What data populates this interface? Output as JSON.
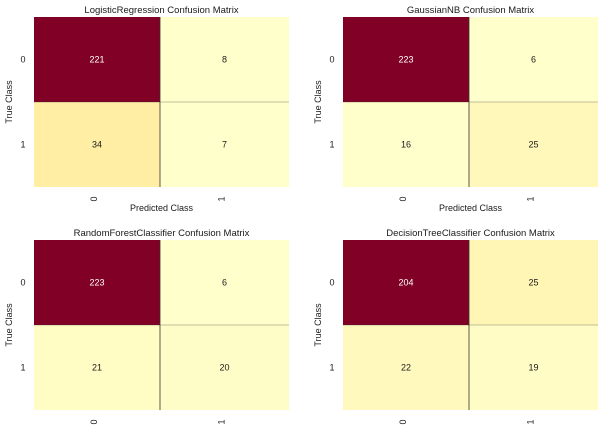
{
  "chart_data": [
    {
      "type": "heatmap",
      "title": "LogisticRegression Confusion Matrix",
      "xlabel": "Predicted Class",
      "ylabel": "True Class",
      "x_ticks": [
        "0",
        "1"
      ],
      "y_ticks": [
        "0",
        "1"
      ],
      "matrix": [
        [
          221,
          8
        ],
        [
          34,
          7
        ]
      ],
      "grid": false
    },
    {
      "type": "heatmap",
      "title": "GaussianNB Confusion Matrix",
      "xlabel": "Predicted Class",
      "ylabel": "True Class",
      "x_ticks": [
        "0",
        "1"
      ],
      "y_ticks": [
        "0",
        "1"
      ],
      "matrix": [
        [
          223,
          6
        ],
        [
          16,
          25
        ]
      ],
      "grid": false
    },
    {
      "type": "heatmap",
      "title": "RandomForestClassifier Confusion Matrix",
      "xlabel": "",
      "ylabel": "True Class",
      "x_ticks": [
        "0",
        "1"
      ],
      "y_ticks": [
        "0",
        "1"
      ],
      "matrix": [
        [
          223,
          6
        ],
        [
          21,
          20
        ]
      ],
      "grid": false
    },
    {
      "type": "heatmap",
      "title": "DecisionTreeClassifier Confusion Matrix",
      "xlabel": "",
      "ylabel": "True Class",
      "x_ticks": [
        "0",
        "1"
      ],
      "y_ticks": [
        "0",
        "1"
      ],
      "matrix": [
        [
          204,
          25
        ],
        [
          22,
          19
        ]
      ],
      "grid": false
    }
  ],
  "colors": {
    "max": "#800026",
    "low": "#ffffcc",
    "mid": "#ffeda0",
    "dark_text": "#1a1a1a",
    "light_text": "#ffffff",
    "divider": "#333333"
  }
}
